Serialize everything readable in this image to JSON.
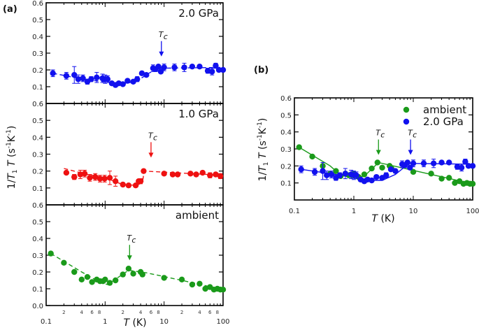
{
  "panels": {
    "a_label": "(a)",
    "b_label": "(b)"
  },
  "axes": {
    "ylabel": "1/T₁T (s⁻¹K⁻¹)",
    "xlabel": "T (K)",
    "x_major_ticks": [
      "0.1",
      "1",
      "10",
      "100"
    ],
    "x_minor_labels": [
      "2",
      "4",
      "6",
      "8"
    ],
    "y_ticks_a": [
      "0.1",
      "0.2",
      "0.3",
      "0.4",
      "0.5",
      "0.6"
    ],
    "y_ticks_a_bottom": [
      "0.0",
      "0.1",
      "0.2",
      "0.3",
      "0.4",
      "0.5",
      "0.6"
    ],
    "y_ticks_b": [
      "0.1",
      "0.2",
      "0.3",
      "0.4",
      "0.5",
      "0.6"
    ]
  },
  "tc_label": "Tc",
  "colors": {
    "ambient": "#1a9a1a",
    "p1": "#ee1111",
    "p2": "#1111ee"
  },
  "chart_data": [
    {
      "type": "scatter",
      "panel": "a-top",
      "title": "2.0 GPa",
      "xlabel": "T (K)",
      "ylabel": "1/T1T (s^-1 K^-1)",
      "xscale": "log",
      "xlim": [
        0.1,
        100
      ],
      "ylim": [
        0.05,
        0.6
      ],
      "tc": 9,
      "series": [
        {
          "name": "2.0 GPa",
          "x": [
            0.13,
            0.22,
            0.3,
            0.35,
            0.42,
            0.5,
            0.58,
            0.72,
            0.9,
            1.0,
            1.1,
            1.3,
            1.5,
            1.7,
            2.0,
            2.4,
            3.0,
            3.5,
            4.2,
            5.0,
            6.5,
            7.2,
            8.0,
            8.8,
            10.0,
            15,
            22,
            30,
            40,
            55,
            65,
            75,
            85,
            100
          ],
          "y": [
            0.18,
            0.165,
            0.17,
            0.145,
            0.15,
            0.13,
            0.145,
            0.155,
            0.15,
            0.145,
            0.145,
            0.12,
            0.11,
            0.12,
            0.115,
            0.135,
            0.13,
            0.145,
            0.18,
            0.17,
            0.21,
            0.205,
            0.22,
            0.19,
            0.215,
            0.215,
            0.215,
            0.22,
            0.22,
            0.195,
            0.19,
            0.225,
            0.2,
            0.2
          ],
          "yerr": [
            0.02,
            0.02,
            0.05,
            0.025,
            0.02,
            0.015,
            0.015,
            0.03,
            0.025,
            0.025,
            0.02,
            0.01,
            0.01,
            0.01,
            0.01,
            0.01,
            0.01,
            0.015,
            0.01,
            0.01,
            0.02,
            0.015,
            0.01,
            0.01,
            0.02,
            0.02,
            0.025,
            0.01,
            0.01,
            0.015,
            0.02,
            0.015,
            0.01,
            0.01
          ]
        }
      ]
    },
    {
      "type": "scatter",
      "panel": "a-middle",
      "title": "1.0 GPa",
      "xscale": "log",
      "xlim": [
        0.1,
        100
      ],
      "ylim": [
        0.05,
        0.6
      ],
      "tc": 6,
      "series": [
        {
          "name": "1.0 GPa",
          "x": [
            0.22,
            0.3,
            0.38,
            0.45,
            0.55,
            0.68,
            0.82,
            0.98,
            1.2,
            1.5,
            2.0,
            2.5,
            3.3,
            3.7,
            4.0,
            4.5,
            10,
            14,
            17,
            28,
            35,
            45,
            60,
            75,
            90
          ],
          "y": [
            0.19,
            0.165,
            0.18,
            0.185,
            0.16,
            0.165,
            0.155,
            0.155,
            0.16,
            0.14,
            0.12,
            0.115,
            0.115,
            0.14,
            0.14,
            0.2,
            0.185,
            0.18,
            0.18,
            0.185,
            0.18,
            0.19,
            0.175,
            0.18,
            0.17
          ],
          "yerr": [
            0.01,
            0.015,
            0.025,
            0.02,
            0.02,
            0.02,
            0.02,
            0.02,
            0.04,
            0.03,
            0.01,
            0.01,
            0.01,
            0.01,
            0.015,
            0.01,
            0.01,
            0.01,
            0.01,
            0.01,
            0.01,
            0.01,
            0.015,
            0.01,
            0.015
          ]
        }
      ]
    },
    {
      "type": "scatter",
      "panel": "a-bottom",
      "title": "ambient",
      "xscale": "log",
      "xlim": [
        0.1,
        100
      ],
      "ylim": [
        0.0,
        0.6
      ],
      "tc": 2.6,
      "series": [
        {
          "name": "ambient",
          "x": [
            0.12,
            0.2,
            0.3,
            0.4,
            0.5,
            0.6,
            0.72,
            0.82,
            0.92,
            1.0,
            1.2,
            1.5,
            2.0,
            2.5,
            3.0,
            4.0,
            4.3,
            10,
            20,
            30,
            40,
            50,
            60,
            70,
            80,
            90,
            100
          ],
          "y": [
            0.31,
            0.255,
            0.2,
            0.155,
            0.17,
            0.14,
            0.155,
            0.145,
            0.145,
            0.155,
            0.135,
            0.15,
            0.185,
            0.22,
            0.19,
            0.2,
            0.185,
            0.165,
            0.155,
            0.125,
            0.13,
            0.1,
            0.11,
            0.095,
            0.1,
            0.095,
            0.095
          ]
        }
      ]
    },
    {
      "type": "scatter",
      "panel": "b",
      "xlabel": "T (K)",
      "ylabel": "1/T1T (s^-1 K^-1)",
      "xscale": "log",
      "xlim": [
        0.1,
        100
      ],
      "ylim": [
        0.0,
        0.6
      ],
      "legend": "top-right",
      "series": [
        {
          "name": "ambient",
          "tc": 2.6,
          "x": [
            0.12,
            0.2,
            0.3,
            0.4,
            0.5,
            0.6,
            0.72,
            0.82,
            0.92,
            1.0,
            1.2,
            1.5,
            2.0,
            2.5,
            3.0,
            4.0,
            4.3,
            10,
            20,
            30,
            40,
            50,
            60,
            70,
            80,
            90,
            100
          ],
          "y": [
            0.31,
            0.255,
            0.2,
            0.155,
            0.17,
            0.14,
            0.155,
            0.145,
            0.145,
            0.155,
            0.135,
            0.15,
            0.185,
            0.22,
            0.19,
            0.2,
            0.185,
            0.165,
            0.155,
            0.125,
            0.13,
            0.1,
            0.11,
            0.095,
            0.1,
            0.095,
            0.095
          ]
        },
        {
          "name": "2.0 GPa",
          "tc": 9,
          "x": [
            0.13,
            0.22,
            0.3,
            0.35,
            0.42,
            0.5,
            0.58,
            0.72,
            0.9,
            1.0,
            1.1,
            1.3,
            1.5,
            1.7,
            2.0,
            2.4,
            3.0,
            3.5,
            4.2,
            5.0,
            6.5,
            7.2,
            8.0,
            8.8,
            10.0,
            15,
            22,
            30,
            40,
            55,
            65,
            75,
            85,
            100
          ],
          "y": [
            0.18,
            0.165,
            0.17,
            0.145,
            0.15,
            0.13,
            0.145,
            0.155,
            0.15,
            0.145,
            0.145,
            0.12,
            0.11,
            0.12,
            0.115,
            0.135,
            0.13,
            0.145,
            0.18,
            0.17,
            0.21,
            0.205,
            0.22,
            0.19,
            0.215,
            0.215,
            0.215,
            0.22,
            0.22,
            0.195,
            0.19,
            0.225,
            0.2,
            0.2
          ],
          "yerr": [
            0.02,
            0.02,
            0.05,
            0.025,
            0.02,
            0.015,
            0.015,
            0.03,
            0.025,
            0.025,
            0.02,
            0.01,
            0.01,
            0.01,
            0.01,
            0.01,
            0.01,
            0.015,
            0.01,
            0.01,
            0.02,
            0.015,
            0.01,
            0.01,
            0.02,
            0.02,
            0.025,
            0.01,
            0.01,
            0.015,
            0.02,
            0.015,
            0.01,
            0.01
          ]
        }
      ]
    }
  ]
}
